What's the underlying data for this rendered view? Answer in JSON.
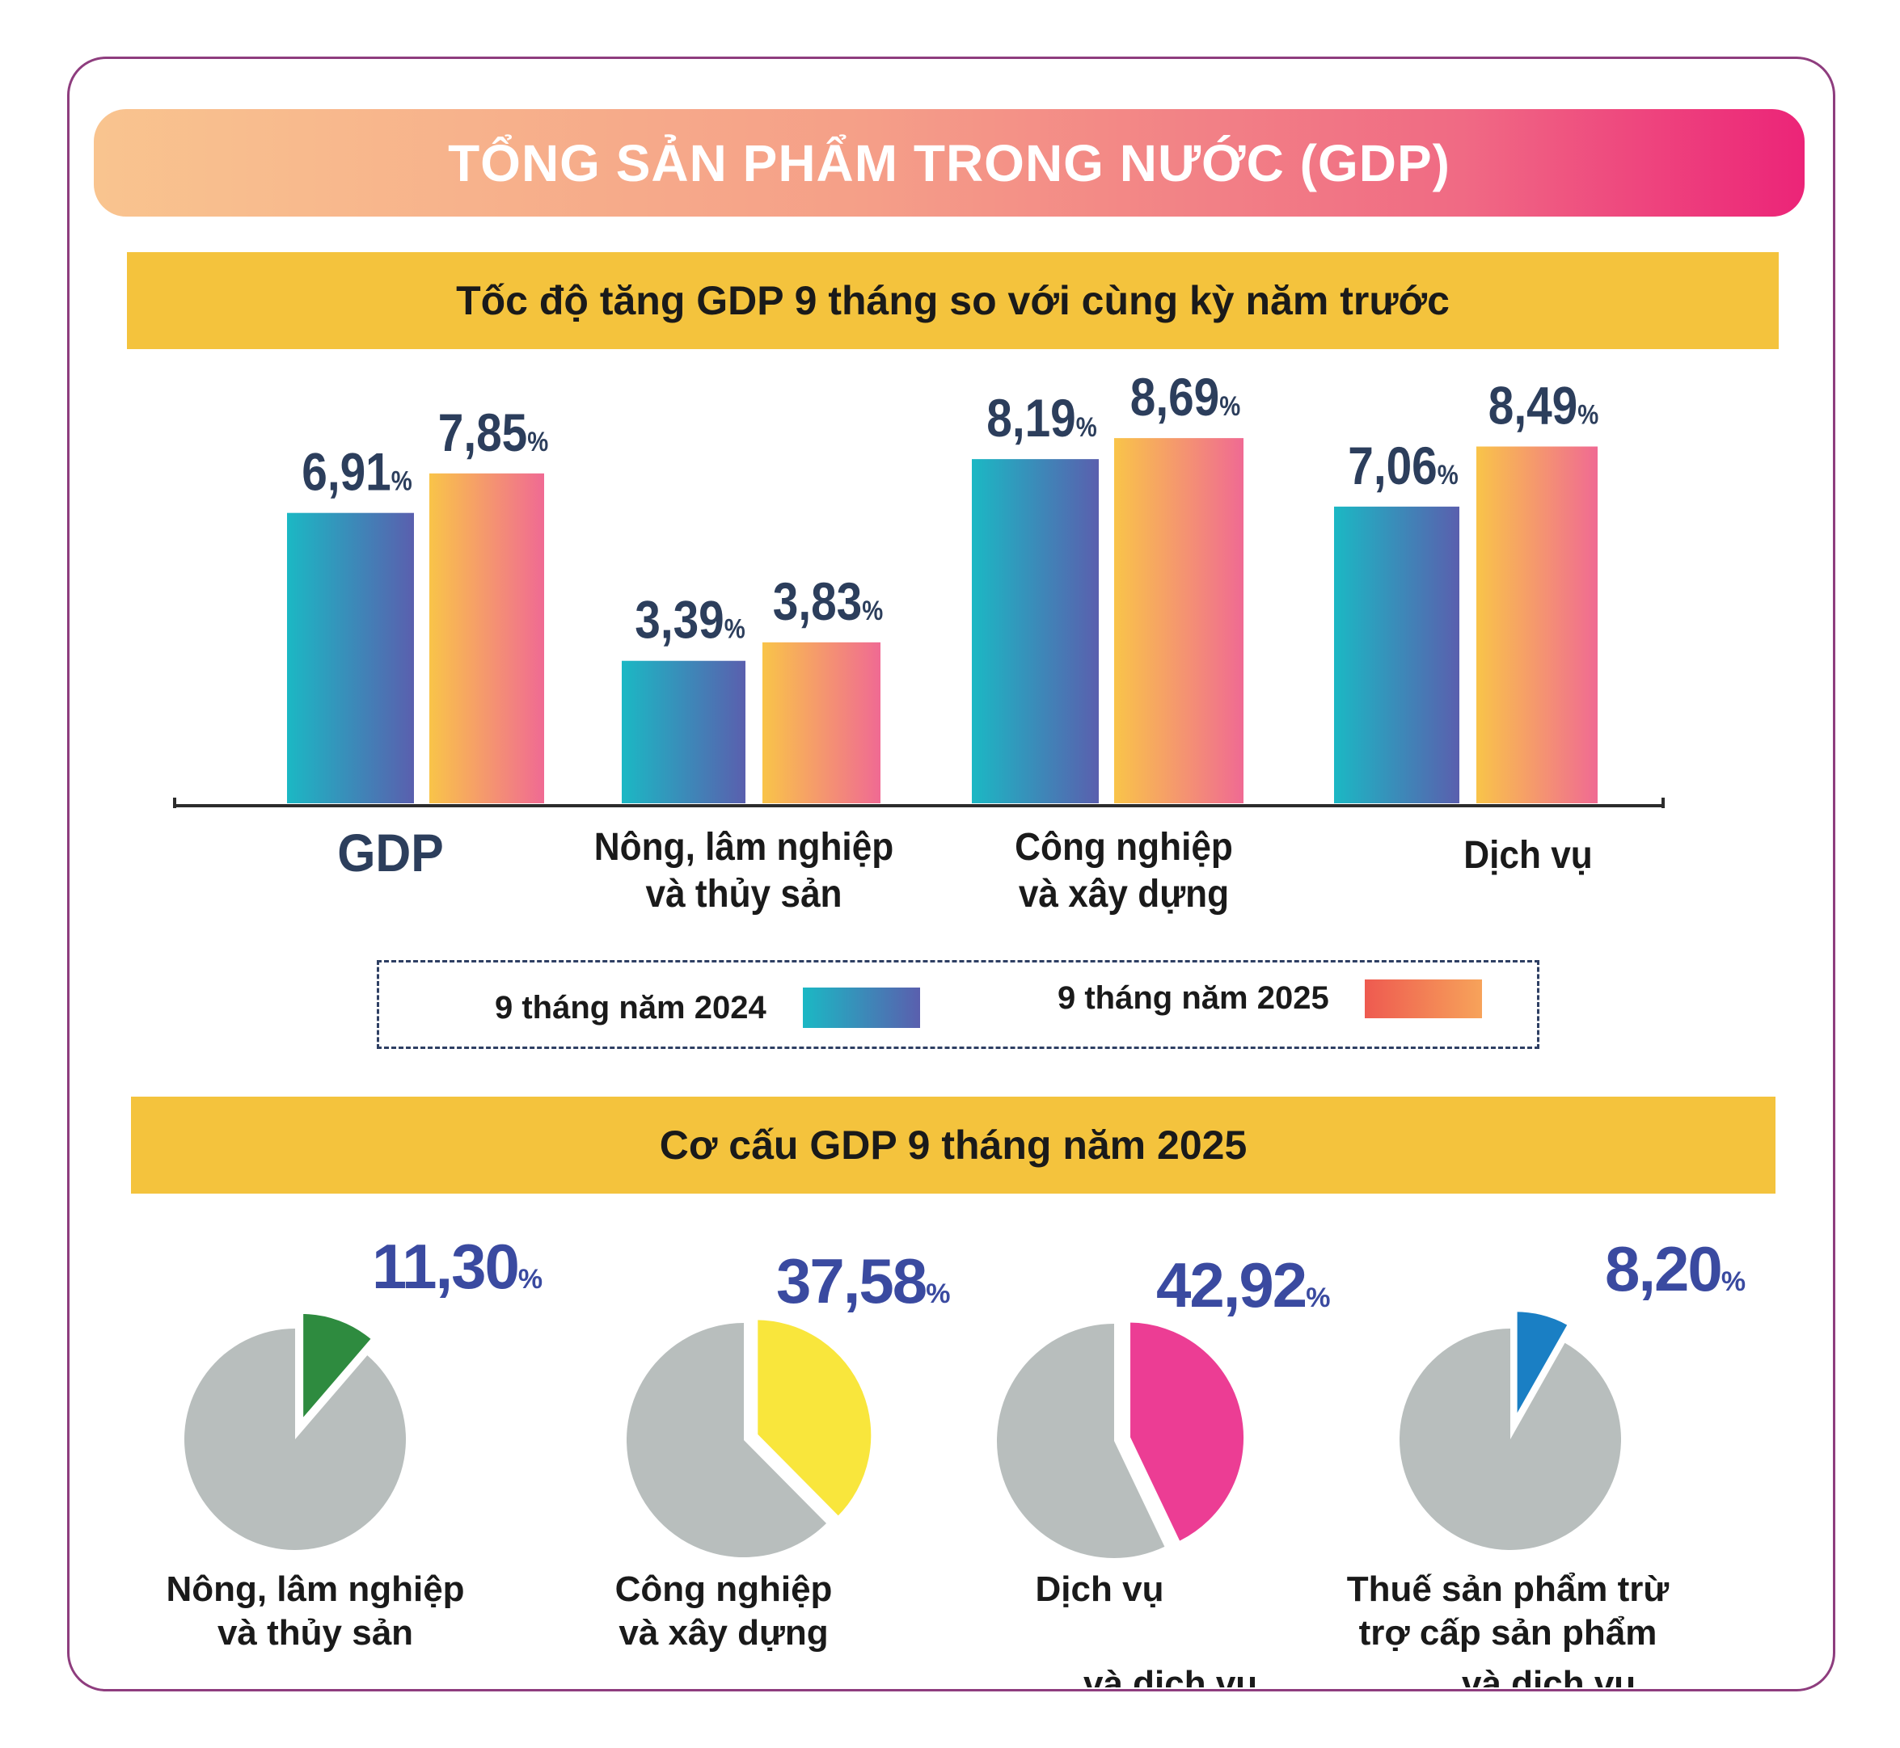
{
  "title": "TỔNG SẢN PHẨM TRONG NƯỚC (GDP)",
  "section1_title": "Tốc độ tăng GDP 9 tháng so với cùng kỳ năm trước",
  "section2_title": "Cơ cấu GDP 9 tháng năm 2025",
  "colors": {
    "frame": "#8e3d7e",
    "band": "#f4c33d",
    "value_text": "#2c3e5c",
    "pie_value_text": "#3a4aa0",
    "pie_rest": "#b8bebd",
    "series_2024": [
      "#1bb8c4",
      "#5a5fae"
    ],
    "series_2025": [
      "#f9c449",
      "#f06a93"
    ]
  },
  "legend": {
    "s2024": "9 tháng năm 2024",
    "s2025": "9 tháng năm 2025"
  },
  "categories_display": {
    "c0": [
      "GDP"
    ],
    "c1": [
      "Nông, lâm nghiệp",
      "và thủy sản"
    ],
    "c2": [
      "Công nghiệp",
      "và xây dựng"
    ],
    "c3": [
      "Dịch vụ"
    ]
  },
  "chart_data": [
    {
      "type": "bar",
      "title": "Tốc độ tăng GDP 9 tháng so với cùng kỳ năm trước",
      "categories": [
        "GDP",
        "Nông, lâm nghiệp và thủy sản",
        "Công nghiệp và xây dựng",
        "Dịch vụ"
      ],
      "series": [
        {
          "name": "9 tháng năm 2024",
          "values": [
            6.91,
            3.39,
            8.19,
            7.06
          ],
          "labels": [
            "6,91",
            "3,39",
            "8,19",
            "7,06"
          ]
        },
        {
          "name": "9 tháng năm 2025",
          "values": [
            7.85,
            3.83,
            8.69,
            8.49
          ],
          "labels": [
            "7,85",
            "3,83",
            "8,69",
            "8,49"
          ]
        }
      ],
      "unit": "%",
      "ylim": [
        0,
        9
      ],
      "grid": false,
      "legend": "bottom-center"
    },
    {
      "type": "pie",
      "title": "Cơ cấu GDP 9 tháng năm 2025",
      "slices": [
        {
          "label": "Nông, lâm nghiệp và thủy sản",
          "label_lines": [
            "Nông, lâm nghiệp",
            "và thủy sản"
          ],
          "value": 11.3,
          "value_label": "11,30",
          "color": "#2e8b3f",
          "ghost": ""
        },
        {
          "label": "Công nghiệp và xây dựng",
          "label_lines": [
            "Công nghiệp",
            "và xây dựng"
          ],
          "value": 37.58,
          "value_label": "37,58",
          "color": "#f9e63c",
          "ghost": ""
        },
        {
          "label": "Dịch vụ",
          "label_lines": [
            "Dịch vụ"
          ],
          "value": 42.92,
          "value_label": "42,92",
          "color": "#ec3d94",
          "ghost": "và dịch vụ"
        },
        {
          "label": "Thuế sản phẩm trừ trợ cấp sản phẩm",
          "label_lines": [
            "Thuế sản phẩm trừ",
            "trợ cấp sản phẩm"
          ],
          "value": 8.2,
          "value_label": "8,20",
          "color": "#1a7fc4",
          "ghost": "và dịch vụ"
        }
      ],
      "unit": "%"
    }
  ]
}
